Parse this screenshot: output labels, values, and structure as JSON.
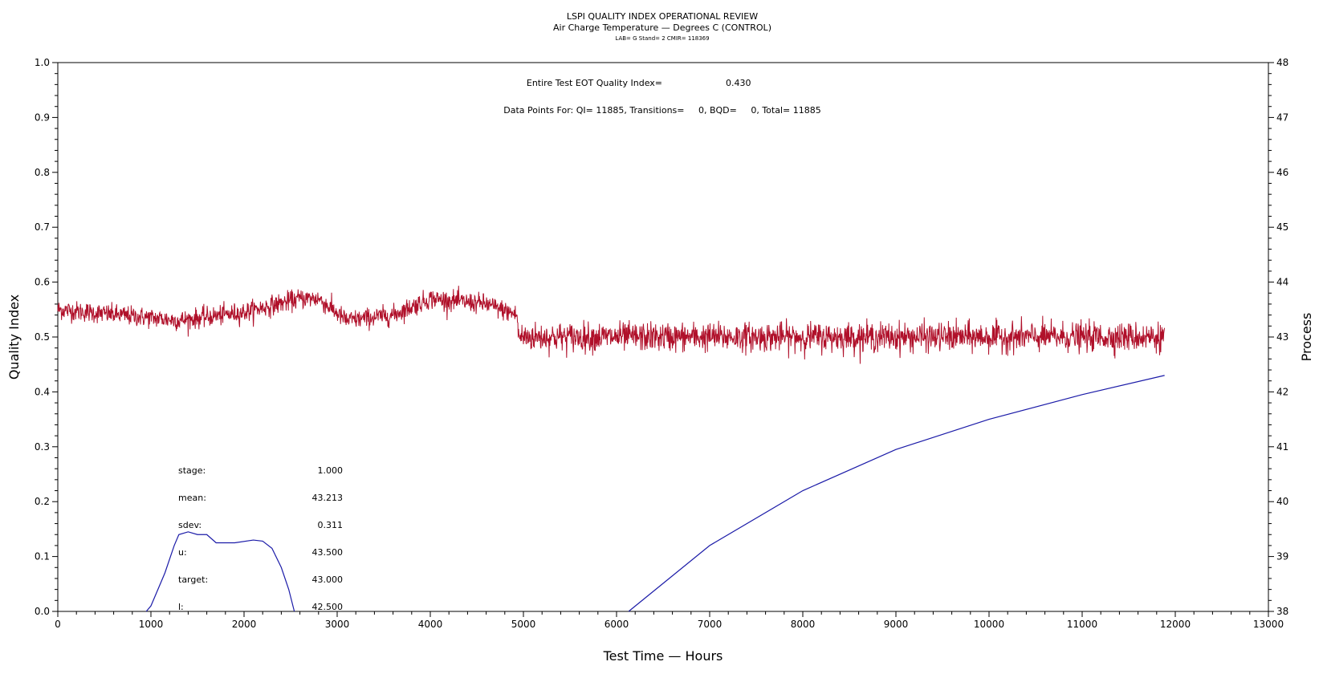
{
  "chart_data": {
    "type": "line",
    "title": "LSPI QUALITY INDEX OPERATIONAL REVIEW",
    "subtitle": "Air Charge Temperature — Degrees C (CONTROL)",
    "subtitle2": "LAB= G Stand= 2 CMIR= 118369",
    "xlabel": "Test Time — Hours",
    "ylabel": "Quality Index",
    "y2label": "Process",
    "xlim": [
      0,
      13000
    ],
    "ylim": [
      0.0,
      1.0
    ],
    "y2lim": [
      38,
      48
    ],
    "xticks": [
      "0",
      "1000",
      "2000",
      "3000",
      "4000",
      "5000",
      "6000",
      "7000",
      "8000",
      "9000",
      "10000",
      "11000",
      "12000",
      "13000"
    ],
    "yticks": [
      "0.0",
      "0.1",
      "0.2",
      "0.3",
      "0.4",
      "0.5",
      "0.6",
      "0.7",
      "0.8",
      "0.9",
      "1.0"
    ],
    "y2ticks": [
      "38",
      "39",
      "40",
      "41",
      "42",
      "43",
      "44",
      "45",
      "46",
      "47",
      "48"
    ],
    "grid": false,
    "annotations": {
      "eot_label": "Entire Test EOT Quality Index=",
      "eot_value": "0.430",
      "points_line": "Data Points For: QI= 11885, Transitions=     0, BQD=     0, Total= 11885"
    },
    "stats": [
      {
        "label": "stage:",
        "value": "1.000"
      },
      {
        "label": "mean:",
        "value": "43.213"
      },
      {
        "label": "sdev:",
        "value": "0.311"
      },
      {
        "label": "u:",
        "value": "43.500"
      },
      {
        "label": "target:",
        "value": "43.000"
      },
      {
        "label": "l:",
        "value": "42.500"
      }
    ],
    "series": [
      {
        "role": "process",
        "axis": "right",
        "color": "#b0102a",
        "x_range": [
          0,
          11885
        ],
        "profile": [
          {
            "x": 0,
            "y": 43.5
          },
          {
            "x": 1000,
            "y": 43.35
          },
          {
            "x": 1300,
            "y": 43.3
          },
          {
            "x": 2000,
            "y": 43.45
          },
          {
            "x": 2600,
            "y": 43.7
          },
          {
            "x": 2800,
            "y": 43.7
          },
          {
            "x": 3100,
            "y": 43.3
          },
          {
            "x": 3600,
            "y": 43.4
          },
          {
            "x": 4000,
            "y": 43.7
          },
          {
            "x": 4600,
            "y": 43.6
          },
          {
            "x": 4930,
            "y": 43.4
          },
          {
            "x": 4950,
            "y": 43.0
          },
          {
            "x": 11885,
            "y": 43.0
          }
        ],
        "noise_sd": [
          {
            "x": 0,
            "sd": 0.09
          },
          {
            "x": 4930,
            "sd": 0.09
          },
          {
            "x": 4950,
            "sd": 0.13
          },
          {
            "x": 11885,
            "sd": 0.13
          }
        ]
      },
      {
        "role": "eot-quality-index",
        "axis": "left",
        "color": "#1b1ba8",
        "points": [
          {
            "x": 6130,
            "y": 0.0
          },
          {
            "x": 7000,
            "y": 0.12
          },
          {
            "x": 8000,
            "y": 0.22
          },
          {
            "x": 9000,
            "y": 0.295
          },
          {
            "x": 10000,
            "y": 0.35
          },
          {
            "x": 11000,
            "y": 0.395
          },
          {
            "x": 11885,
            "y": 0.43
          }
        ]
      },
      {
        "role": "distribution",
        "axis": "left",
        "color": "#1b1ba8",
        "points": [
          {
            "x": 950,
            "y": 0.0
          },
          {
            "x": 1000,
            "y": 0.01
          },
          {
            "x": 1050,
            "y": 0.03
          },
          {
            "x": 1150,
            "y": 0.07
          },
          {
            "x": 1250,
            "y": 0.12
          },
          {
            "x": 1300,
            "y": 0.14
          },
          {
            "x": 1400,
            "y": 0.145
          },
          {
            "x": 1500,
            "y": 0.14
          },
          {
            "x": 1600,
            "y": 0.14
          },
          {
            "x": 1700,
            "y": 0.125
          },
          {
            "x": 1900,
            "y": 0.125
          },
          {
            "x": 2100,
            "y": 0.13
          },
          {
            "x": 2200,
            "y": 0.128
          },
          {
            "x": 2300,
            "y": 0.115
          },
          {
            "x": 2400,
            "y": 0.08
          },
          {
            "x": 2480,
            "y": 0.04
          },
          {
            "x": 2540,
            "y": 0.0
          }
        ]
      }
    ]
  }
}
